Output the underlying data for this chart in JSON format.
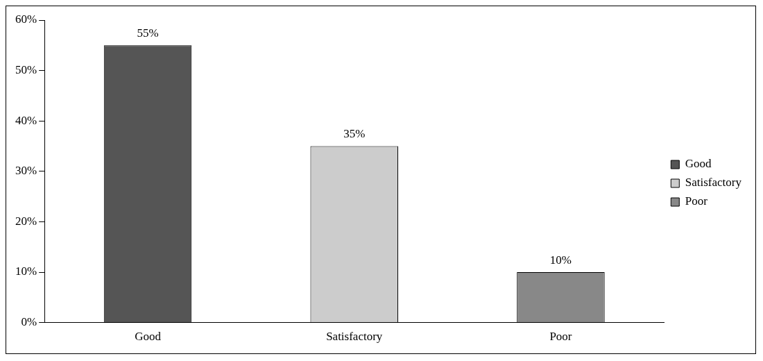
{
  "chart_data": {
    "type": "bar",
    "categories": [
      "Good",
      "Satisfactory",
      "Poor"
    ],
    "series": [
      {
        "name": "Good",
        "color": "#555555",
        "values": [
          55,
          null,
          null
        ],
        "value_labels": [
          "55%",
          null,
          null
        ]
      },
      {
        "name": "Satisfactory",
        "color": "#cccccc",
        "values": [
          null,
          35,
          null
        ],
        "value_labels": [
          null,
          "35%",
          null
        ]
      },
      {
        "name": "Poor",
        "color": "#888888",
        "values": [
          null,
          null,
          10
        ],
        "value_labels": [
          null,
          null,
          "10%"
        ]
      }
    ],
    "ylim": [
      0,
      60
    ],
    "yticks": [
      {
        "value": 0,
        "label": "0%"
      },
      {
        "value": 10,
        "label": "10%"
      },
      {
        "value": 20,
        "label": "20%"
      },
      {
        "value": 30,
        "label": "30%"
      },
      {
        "value": 40,
        "label": "40%"
      },
      {
        "value": 50,
        "label": "50%"
      },
      {
        "value": 60,
        "label": "60%"
      }
    ],
    "grid": false,
    "legend": "right"
  }
}
